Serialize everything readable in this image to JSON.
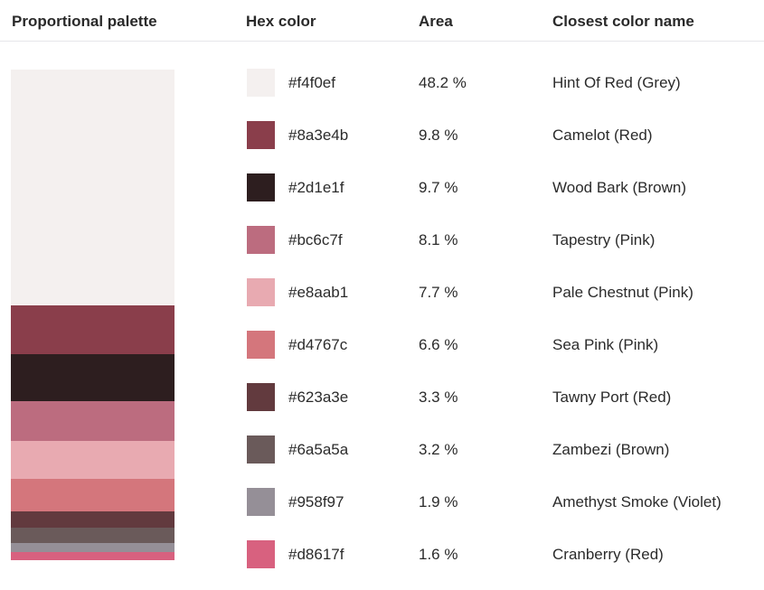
{
  "headers": {
    "palette": "Proportional palette",
    "hex": "Hex color",
    "area": "Area",
    "name": "Closest color name"
  },
  "colors": [
    {
      "hex": "#f4f0ef",
      "area": "48.2 %",
      "area_value": 48.2,
      "name": "Hint Of Red (Grey)"
    },
    {
      "hex": "#8a3e4b",
      "area": "9.8 %",
      "area_value": 9.8,
      "name": "Camelot (Red)"
    },
    {
      "hex": "#2d1e1f",
      "area": "9.7 %",
      "area_value": 9.7,
      "name": "Wood Bark (Brown)"
    },
    {
      "hex": "#bc6c7f",
      "area": "8.1 %",
      "area_value": 8.1,
      "name": "Tapestry (Pink)"
    },
    {
      "hex": "#e8aab1",
      "area": "7.7 %",
      "area_value": 7.7,
      "name": "Pale Chestnut (Pink)"
    },
    {
      "hex": "#d4767c",
      "area": "6.6 %",
      "area_value": 6.6,
      "name": "Sea Pink (Pink)"
    },
    {
      "hex": "#623a3e",
      "area": "3.3 %",
      "area_value": 3.3,
      "name": "Tawny Port (Red)"
    },
    {
      "hex": "#6a5a5a",
      "area": "3.2 %",
      "area_value": 3.2,
      "name": "Zambezi (Brown)"
    },
    {
      "hex": "#958f97",
      "area": "1.9 %",
      "area_value": 1.9,
      "name": "Amethyst Smoke (Violet)"
    },
    {
      "hex": "#d8617f",
      "area": "1.6 %",
      "area_value": 1.6,
      "name": "Cranberry (Red)"
    }
  ]
}
